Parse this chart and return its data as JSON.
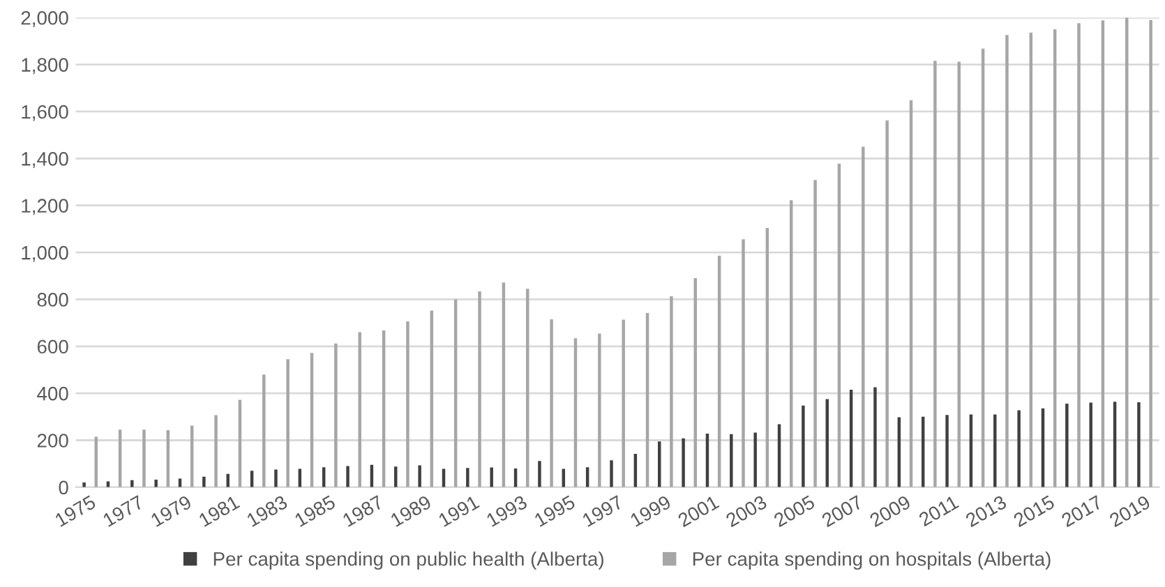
{
  "chart_data": {
    "type": "bar",
    "categories": [
      "1975",
      null,
      "1977",
      null,
      "1979",
      null,
      "1981",
      null,
      "1983",
      null,
      "1985",
      null,
      "1987",
      null,
      "1989",
      null,
      "1991",
      null,
      "1993",
      null,
      "1995",
      null,
      "1997",
      null,
      "1999",
      null,
      "2001",
      null,
      "2003",
      null,
      "2005",
      null,
      "2007",
      null,
      "2009",
      null,
      "2011",
      null,
      "2013",
      null,
      "2015",
      null,
      "2017",
      null,
      "2019"
    ],
    "series": [
      {
        "name": "Per capita spending on public health (Alberta)",
        "color": "#404040",
        "values": [
          20,
          25,
          30,
          32,
          37,
          45,
          57,
          70,
          75,
          78,
          85,
          90,
          95,
          88,
          93,
          78,
          82,
          84,
          80,
          112,
          78,
          85,
          115,
          142,
          195,
          208,
          228,
          226,
          233,
          268,
          348,
          375,
          415,
          426,
          298,
          300,
          308,
          310,
          310,
          328,
          336,
          356,
          360,
          364,
          362
        ]
      },
      {
        "name": "Per capita spending on hospitals (Alberta)",
        "color": "#a6a6a6",
        "values": [
          215,
          245,
          245,
          243,
          262,
          307,
          372,
          480,
          545,
          572,
          612,
          660,
          668,
          706,
          752,
          800,
          834,
          872,
          845,
          715,
          634,
          654,
          714,
          742,
          813,
          890,
          986,
          1056,
          1104,
          1222,
          1308,
          1378,
          1450,
          1562,
          1648,
          1816,
          1812,
          1868,
          1926,
          1936,
          1950,
          1976,
          1988,
          2000,
          1990
        ]
      }
    ],
    "ylim": [
      0,
      2000
    ],
    "yticks": [
      0,
      {
        "value": 200,
        "label": "200"
      },
      {
        "value": 400,
        "label": "400"
      },
      {
        "value": 600,
        "label": "600"
      },
      {
        "value": 800,
        "label": "800"
      },
      {
        "value": 1000,
        "label": "1,000"
      },
      {
        "value": 1200,
        "label": "1,200"
      },
      {
        "value": 1400,
        "label": "1,400"
      },
      {
        "value": 1600,
        "label": "1,600"
      },
      {
        "value": 1800,
        "label": "1,800"
      },
      {
        "value": 2000,
        "label": "2,000"
      }
    ],
    "grid": "y",
    "legend": "bottom"
  }
}
